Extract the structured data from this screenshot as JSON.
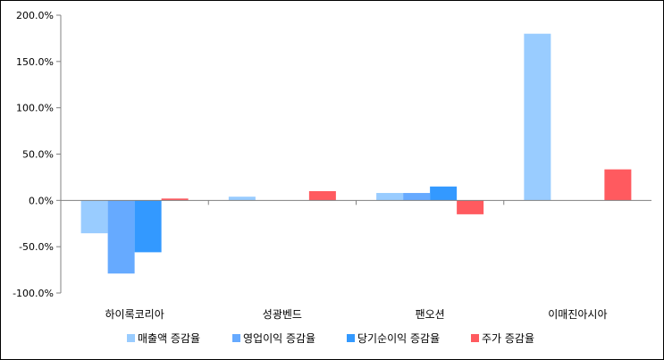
{
  "chart_data": {
    "type": "bar",
    "categories": [
      "하이록코리아",
      "성광벤드",
      "팬오션",
      "이매진아시아"
    ],
    "series": [
      {
        "name": "매출액 증감율",
        "color": "#99CCFF",
        "values": [
          -35.5,
          4.0,
          8.0,
          180.0
        ]
      },
      {
        "name": "영업이익 증감율",
        "color": "#66AAFF",
        "values": [
          -79.0,
          0.0,
          8.0,
          0.0
        ]
      },
      {
        "name": "당기순이익 증감율",
        "color": "#3399FF",
        "values": [
          -56.0,
          0.0,
          15.0,
          0.0
        ]
      },
      {
        "name": "주가 증감율",
        "color": "#FF5A5F",
        "values": [
          2.0,
          10.0,
          -15.0,
          33.5
        ]
      }
    ],
    "yticks": [
      "200.0%",
      "150.0%",
      "100.0%",
      "50.0%",
      "0.0%",
      "-50.0%",
      "-100.0%"
    ],
    "ylim": [
      -100,
      200
    ],
    "title": "",
    "xlabel": "",
    "ylabel": "",
    "grid": false,
    "legend_position": "bottom"
  }
}
